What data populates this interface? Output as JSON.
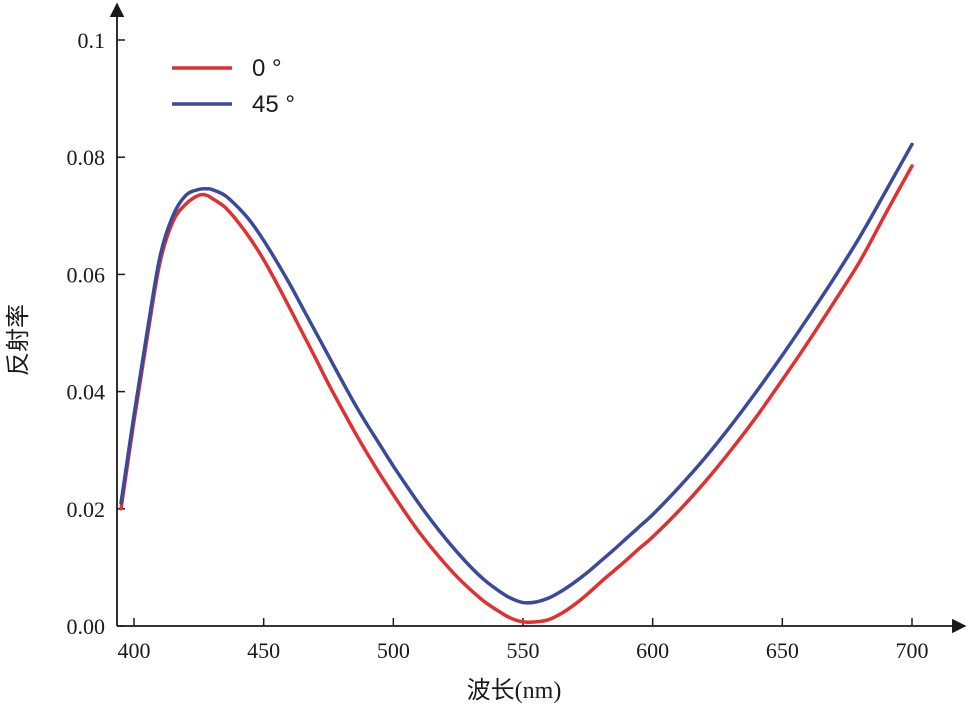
{
  "chart_data": {
    "type": "line",
    "title": "",
    "xlabel": "波长(nm)",
    "ylabel": "反射率",
    "xlim": [
      395,
      705
    ],
    "ylim": [
      0.0,
      0.1
    ],
    "x_ticks": [
      400,
      450,
      500,
      550,
      600,
      650,
      700
    ],
    "x_tick_labels": [
      "400",
      "450",
      "500",
      "550",
      "600",
      "650",
      "700"
    ],
    "y_ticks": [
      0.0,
      0.02,
      0.04,
      0.06,
      0.08,
      0.1
    ],
    "y_tick_labels": [
      "0.00",
      "0.02",
      "0.04",
      "0.06",
      "0.08",
      "0.1"
    ],
    "grid": false,
    "legend_position": "top-left",
    "series": [
      {
        "name": "0 °",
        "color": "#e03030",
        "x": [
          395,
          400,
          405,
          410,
          415,
          420,
          425,
          428,
          430,
          435,
          440,
          445,
          450,
          455,
          460,
          465,
          470,
          475,
          480,
          485,
          490,
          495,
          500,
          505,
          510,
          515,
          520,
          525,
          530,
          535,
          540,
          545,
          550,
          555,
          560,
          565,
          570,
          575,
          580,
          585,
          590,
          595,
          600,
          610,
          620,
          630,
          640,
          650,
          660,
          670,
          680,
          690,
          700
        ],
        "y": [
          0.02,
          0.035,
          0.049,
          0.062,
          0.069,
          0.072,
          0.0735,
          0.0735,
          0.073,
          0.0715,
          0.069,
          0.066,
          0.0625,
          0.0585,
          0.0543,
          0.05,
          0.0457,
          0.0413,
          0.0372,
          0.0332,
          0.0294,
          0.0258,
          0.0224,
          0.0191,
          0.016,
          0.0132,
          0.0106,
          0.0082,
          0.0061,
          0.0042,
          0.0027,
          0.0014,
          0.0007,
          0.0007,
          0.0011,
          0.0022,
          0.0037,
          0.0055,
          0.0075,
          0.0094,
          0.0113,
          0.0133,
          0.0152,
          0.0196,
          0.0245,
          0.0299,
          0.0357,
          0.042,
          0.0485,
          0.0553,
          0.0623,
          0.0705,
          0.0785
        ]
      },
      {
        "name": "45 °",
        "color": "#3a4a9a",
        "x": [
          395,
          400,
          405,
          410,
          415,
          420,
          425,
          428,
          430,
          435,
          440,
          445,
          450,
          455,
          460,
          465,
          470,
          475,
          480,
          485,
          490,
          495,
          500,
          505,
          510,
          515,
          520,
          525,
          530,
          535,
          540,
          545,
          550,
          555,
          560,
          565,
          570,
          575,
          580,
          585,
          590,
          595,
          600,
          610,
          620,
          630,
          640,
          650,
          660,
          670,
          680,
          690,
          700
        ],
        "y": [
          0.021,
          0.036,
          0.05,
          0.063,
          0.07,
          0.0735,
          0.0745,
          0.0746,
          0.0745,
          0.0735,
          0.0715,
          0.069,
          0.0658,
          0.0622,
          0.0584,
          0.0543,
          0.0502,
          0.0461,
          0.042,
          0.038,
          0.0343,
          0.0308,
          0.0273,
          0.024,
          0.0208,
          0.0178,
          0.015,
          0.0124,
          0.01,
          0.0079,
          0.0062,
          0.0048,
          0.004,
          0.0041,
          0.0048,
          0.006,
          0.0075,
          0.0092,
          0.0111,
          0.013,
          0.015,
          0.017,
          0.019,
          0.0236,
          0.0286,
          0.0341,
          0.04,
          0.0462,
          0.0527,
          0.0594,
          0.0665,
          0.0743,
          0.0822
        ]
      }
    ]
  }
}
